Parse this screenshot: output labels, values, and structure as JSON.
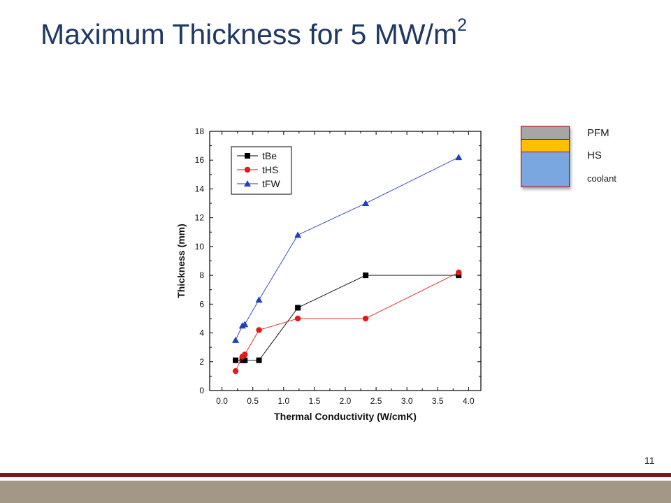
{
  "slide": {
    "title_main": "Maximum Thickness for 5 MW/m",
    "title_sup": "2",
    "page_number": "11"
  },
  "layer_legend": {
    "labels": [
      "PFM",
      "HS",
      "coolant"
    ],
    "colors": [
      "#a6a6a6",
      "#ffc000",
      "#7ba7e0"
    ]
  },
  "chart_data": {
    "type": "line",
    "title": "",
    "xlabel": "Thermal Conductivity (W/cmK)",
    "ylabel": "Thickness (mm)",
    "xlim": [
      -0.2,
      4.2
    ],
    "ylim": [
      0,
      18
    ],
    "x_ticks": [
      "0.0",
      "0.5",
      "1.0",
      "1.5",
      "2.0",
      "2.5",
      "3.0",
      "3.5",
      "4.0"
    ],
    "y_ticks": [
      "0",
      "2",
      "4",
      "6",
      "8",
      "10",
      "12",
      "14",
      "16",
      "18"
    ],
    "grid": false,
    "legend_position": "top-left",
    "series": [
      {
        "name": "tBe",
        "color": "#000000",
        "marker": "square",
        "x": [
          0.22,
          0.33,
          0.37,
          0.6,
          1.23,
          2.33,
          3.84
        ],
        "y": [
          2.1,
          2.1,
          2.1,
          2.1,
          5.75,
          8.0,
          8.0
        ]
      },
      {
        "name": "tHS",
        "color": "#e31a1c",
        "marker": "circle",
        "x": [
          0.22,
          0.33,
          0.37,
          0.6,
          1.23,
          2.33,
          3.84
        ],
        "y": [
          1.35,
          2.35,
          2.5,
          4.2,
          5.0,
          5.0,
          8.2
        ]
      },
      {
        "name": "tFW",
        "color": "#1f3fbf",
        "marker": "triangle",
        "x": [
          0.22,
          0.33,
          0.37,
          0.6,
          1.23,
          2.33,
          3.84
        ],
        "y": [
          3.5,
          4.5,
          4.6,
          6.3,
          10.8,
          13.0,
          16.2
        ]
      }
    ]
  }
}
